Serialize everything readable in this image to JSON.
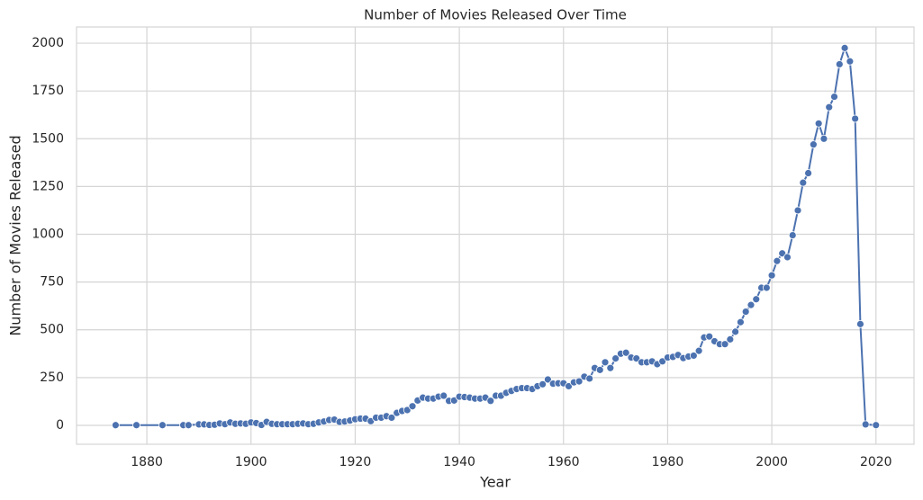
{
  "chart_data": {
    "type": "line",
    "title": "Number of Movies Released Over Time",
    "x_label": "Year",
    "y_label": "Number of Movies Released",
    "x": [
      1874,
      1878,
      1883,
      1887,
      1888,
      1890,
      1891,
      1892,
      1893,
      1894,
      1895,
      1896,
      1897,
      1898,
      1899,
      1900,
      1901,
      1902,
      1903,
      1904,
      1905,
      1906,
      1907,
      1908,
      1909,
      1910,
      1911,
      1912,
      1913,
      1914,
      1915,
      1916,
      1917,
      1918,
      1919,
      1920,
      1921,
      1922,
      1923,
      1924,
      1925,
      1926,
      1927,
      1928,
      1929,
      1930,
      1931,
      1932,
      1933,
      1934,
      1935,
      1936,
      1937,
      1938,
      1939,
      1940,
      1941,
      1942,
      1943,
      1944,
      1945,
      1946,
      1947,
      1948,
      1949,
      1950,
      1951,
      1952,
      1953,
      1954,
      1955,
      1956,
      1957,
      1958,
      1959,
      1960,
      1961,
      1962,
      1963,
      1964,
      1965,
      1966,
      1967,
      1968,
      1969,
      1970,
      1971,
      1972,
      1973,
      1974,
      1975,
      1976,
      1977,
      1978,
      1979,
      1980,
      1981,
      1982,
      1983,
      1984,
      1985,
      1986,
      1987,
      1988,
      1989,
      1990,
      1991,
      1992,
      1993,
      1994,
      1995,
      1996,
      1997,
      1998,
      1999,
      2000,
      2001,
      2002,
      2003,
      2004,
      2005,
      2006,
      2007,
      2008,
      2009,
      2010,
      2011,
      2012,
      2013,
      2014,
      2015,
      2016,
      2017,
      2018,
      2020
    ],
    "values": [
      1,
      1,
      1,
      1,
      1,
      5,
      5,
      2,
      3,
      10,
      6,
      15,
      8,
      10,
      8,
      15,
      12,
      2,
      18,
      8,
      6,
      6,
      6,
      6,
      8,
      10,
      6,
      8,
      15,
      20,
      28,
      30,
      18,
      20,
      25,
      32,
      35,
      35,
      22,
      40,
      40,
      48,
      40,
      65,
      75,
      80,
      100,
      130,
      145,
      140,
      140,
      150,
      155,
      128,
      130,
      150,
      148,
      145,
      140,
      140,
      145,
      128,
      155,
      155,
      170,
      180,
      190,
      195,
      195,
      190,
      205,
      215,
      240,
      218,
      220,
      220,
      205,
      225,
      230,
      255,
      245,
      300,
      290,
      330,
      300,
      350,
      375,
      380,
      355,
      350,
      330,
      330,
      335,
      320,
      335,
      355,
      358,
      368,
      352,
      360,
      365,
      390,
      460,
      465,
      440,
      425,
      425,
      450,
      490,
      540,
      595,
      630,
      660,
      720,
      720,
      785,
      860,
      900,
      880,
      995,
      1125,
      1270,
      1320,
      1470,
      1580,
      1500,
      1665,
      1720,
      1890,
      1975,
      1905,
      1605,
      530,
      5,
      1
    ],
    "color": "#4c72b0",
    "xlim": [
      1866.5,
      2027.3
    ],
    "ylim": [
      -99,
      2085
    ],
    "xticks": [
      1880,
      1900,
      1920,
      1940,
      1960,
      1980,
      2000,
      2020
    ],
    "yticks": [
      0,
      250,
      500,
      750,
      1000,
      1250,
      1500,
      1750,
      2000
    ],
    "grid": true
  }
}
